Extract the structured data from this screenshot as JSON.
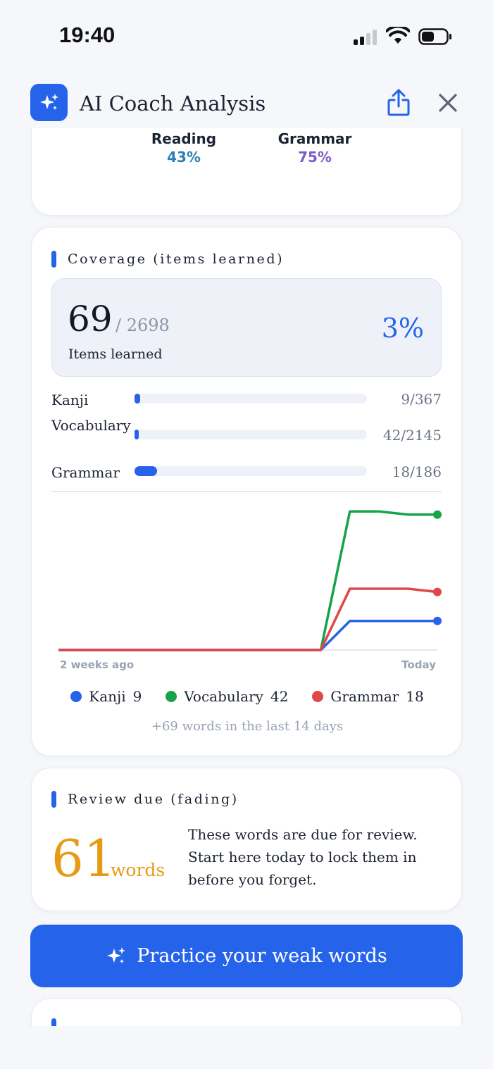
{
  "status": {
    "time": "19:40"
  },
  "header": {
    "title": "AI Coach Analysis"
  },
  "skills": [
    {
      "label": "Reading",
      "value": "43%",
      "color": "#2f7fb3"
    },
    {
      "label": "Grammar",
      "value": "75%",
      "color": "#7c5cc8"
    }
  ],
  "coverage": {
    "title": "Coverage (items learned)",
    "count": "69",
    "total": "/ 2698",
    "items_label": "Items learned",
    "percent": "3%",
    "rows": [
      {
        "label": "Kanji",
        "value": "9/367",
        "fraction": 0.0245
      },
      {
        "label": "Vocabulary",
        "value": "42/2145",
        "fraction": 0.0196
      },
      {
        "label": "Grammar",
        "value": "18/186",
        "fraction": 0.0968
      }
    ],
    "legend": [
      {
        "name": "Kanji",
        "count": "9",
        "color": "#2563eb"
      },
      {
        "name": "Vocabulary",
        "count": "42",
        "color": "#16a34a"
      },
      {
        "name": "Grammar",
        "count": "18",
        "color": "#e04848"
      }
    ],
    "footnote": "+69 words in the last 14 days"
  },
  "chart_data": {
    "type": "line",
    "x_start_label": "2 weeks ago",
    "x_end_label": "Today",
    "x": [
      1,
      2,
      3,
      4,
      5,
      6,
      7,
      8,
      9,
      10,
      11,
      12,
      13,
      14
    ],
    "ylim": [
      0,
      45
    ],
    "series": [
      {
        "name": "Kanji",
        "color": "#2563eb",
        "values": [
          0,
          0,
          0,
          0,
          0,
          0,
          0,
          0,
          0,
          0,
          9,
          9,
          9,
          9
        ]
      },
      {
        "name": "Vocabulary",
        "color": "#16a34a",
        "values": [
          0,
          0,
          0,
          0,
          0,
          0,
          0,
          0,
          0,
          0,
          43,
          43,
          42,
          42
        ]
      },
      {
        "name": "Grammar",
        "color": "#e04848",
        "values": [
          0,
          0,
          0,
          0,
          0,
          0,
          0,
          0,
          0,
          0,
          19,
          19,
          19,
          18
        ]
      }
    ]
  },
  "review": {
    "title": "Review due (fading)",
    "count": "61",
    "unit": "words",
    "description": "These words are due for review. Start here today to lock them in before you forget."
  },
  "cta": {
    "label": "Practice your weak words"
  }
}
